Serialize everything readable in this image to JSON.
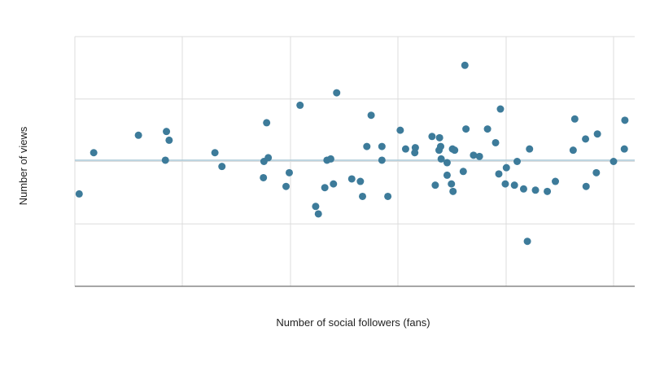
{
  "chart_data": {
    "type": "scatter",
    "title": "",
    "xlabel": "Number of social followers (fans)",
    "ylabel": "Number of views",
    "xlim": [
      0,
      100
    ],
    "ylim": [
      0,
      100
    ],
    "grid": true,
    "legend": "none",
    "trendline": {
      "y": 50.5
    },
    "colors": {
      "point": "#3d7b9a",
      "grid": "#dcdcdc",
      "axis": "#888888",
      "trend": "#a9c7d6"
    },
    "points": [
      [
        0.8,
        37.0
      ],
      [
        3.5,
        53.5
      ],
      [
        11.8,
        60.5
      ],
      [
        17.0,
        62.0
      ],
      [
        17.5,
        58.5
      ],
      [
        16.8,
        50.5
      ],
      [
        26.0,
        53.5
      ],
      [
        27.3,
        48.0
      ],
      [
        35.1,
        50.0
      ],
      [
        35.9,
        51.5
      ],
      [
        35.6,
        65.5
      ],
      [
        35.0,
        43.5
      ],
      [
        39.8,
        45.5
      ],
      [
        39.2,
        40.0
      ],
      [
        41.8,
        72.5
      ],
      [
        44.7,
        32.0
      ],
      [
        45.2,
        29.0
      ],
      [
        46.4,
        39.5
      ],
      [
        46.8,
        50.5
      ],
      [
        47.5,
        51.0
      ],
      [
        48.0,
        41.0
      ],
      [
        48.6,
        77.5
      ],
      [
        51.4,
        43.0
      ],
      [
        53.0,
        42.0
      ],
      [
        53.4,
        36.0
      ],
      [
        54.2,
        56.0
      ],
      [
        55.0,
        68.5
      ],
      [
        57.0,
        56.0
      ],
      [
        57.0,
        50.5
      ],
      [
        58.1,
        36.0
      ],
      [
        60.4,
        62.5
      ],
      [
        61.4,
        55.0
      ],
      [
        63.1,
        53.5
      ],
      [
        63.2,
        55.5
      ],
      [
        66.3,
        60.0
      ],
      [
        66.9,
        40.5
      ],
      [
        67.7,
        59.5
      ],
      [
        67.9,
        56.0
      ],
      [
        67.6,
        54.5
      ],
      [
        68.0,
        51.0
      ],
      [
        69.1,
        49.5
      ],
      [
        69.1,
        44.5
      ],
      [
        69.9,
        41.0
      ],
      [
        70.2,
        38.0
      ],
      [
        70.1,
        55.0
      ],
      [
        70.5,
        54.5
      ],
      [
        72.1,
        46.0
      ],
      [
        72.4,
        88.5
      ],
      [
        72.6,
        63.0
      ],
      [
        74.0,
        52.5
      ],
      [
        75.1,
        52.0
      ],
      [
        76.6,
        63.0
      ],
      [
        78.1,
        57.5
      ],
      [
        79.0,
        71.0
      ],
      [
        78.7,
        45.0
      ],
      [
        80.1,
        47.5
      ],
      [
        79.9,
        41.0
      ],
      [
        81.6,
        40.5
      ],
      [
        82.1,
        50.0
      ],
      [
        83.3,
        39.0
      ],
      [
        84.4,
        55.0
      ],
      [
        84.0,
        18.0
      ],
      [
        85.5,
        38.5
      ],
      [
        87.7,
        38.0
      ],
      [
        89.2,
        42.0
      ],
      [
        92.5,
        54.5
      ],
      [
        92.8,
        67.0
      ],
      [
        94.8,
        59.0
      ],
      [
        94.9,
        40.0
      ],
      [
        97.0,
        61.0
      ],
      [
        96.8,
        45.5
      ],
      [
        100.0,
        50.0
      ],
      [
        102.0,
        55.0
      ],
      [
        102.1,
        66.5
      ]
    ]
  }
}
